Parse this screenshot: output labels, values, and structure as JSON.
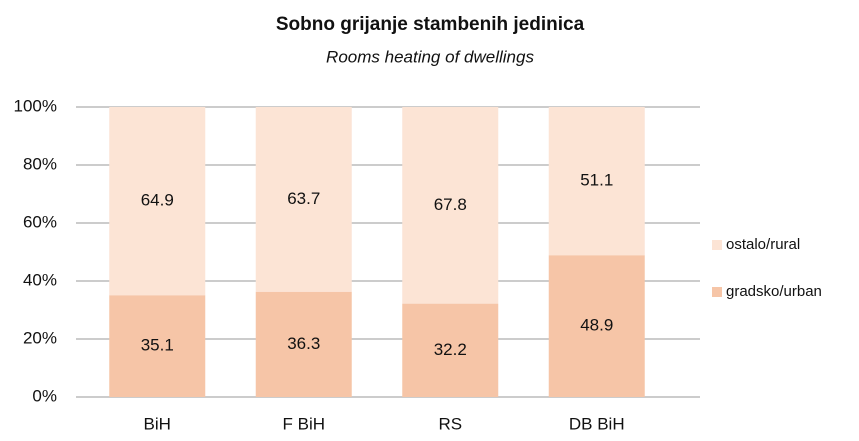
{
  "chart_data": {
    "type": "stacked_bar",
    "title": "Sobno grijanje stambenih jedinica",
    "subtitle": "Rooms heating of dwellings",
    "categories": [
      "BiH",
      "F BiH",
      "RS",
      "DB BiH"
    ],
    "series": [
      {
        "name": "gradsko/urban",
        "color": "#f6c5a7",
        "values": [
          35.1,
          36.3,
          32.2,
          48.9
        ]
      },
      {
        "name": "ostalo/rural",
        "color": "#fce4d5",
        "values": [
          64.9,
          63.7,
          67.8,
          51.1
        ]
      }
    ],
    "ylim": [
      0,
      100
    ],
    "yticks": [
      {
        "value": 0,
        "label": "0%"
      },
      {
        "value": 20,
        "label": "20%"
      },
      {
        "value": 40,
        "label": "40%"
      },
      {
        "value": 60,
        "label": "60%"
      },
      {
        "value": 80,
        "label": "80%"
      },
      {
        "value": 100,
        "label": "100%"
      }
    ],
    "grid": true,
    "legend": "right"
  }
}
